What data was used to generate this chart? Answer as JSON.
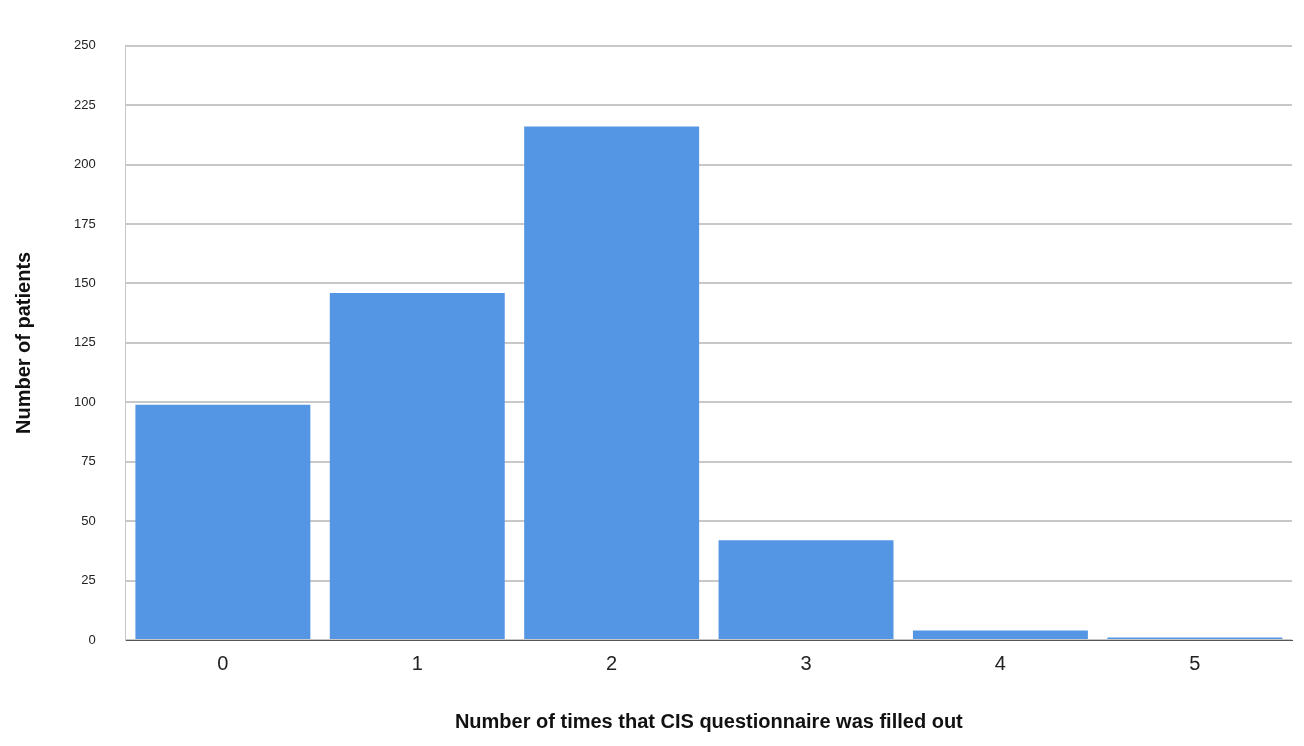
{
  "chart_data": {
    "type": "bar",
    "xlabel": "Number of times that CIS questionnaire was filled out",
    "ylabel": "Number of patients",
    "categories": [
      "0",
      "1",
      "2",
      "3",
      "4",
      "5"
    ],
    "values": [
      99,
      146,
      216,
      42,
      4,
      1
    ],
    "color": "#5596e4",
    "ylim": [
      0,
      250
    ],
    "yticks": [
      0,
      25,
      50,
      75,
      100,
      125,
      150,
      175,
      200,
      225,
      250
    ],
    "grid": "y",
    "legend": false
  }
}
